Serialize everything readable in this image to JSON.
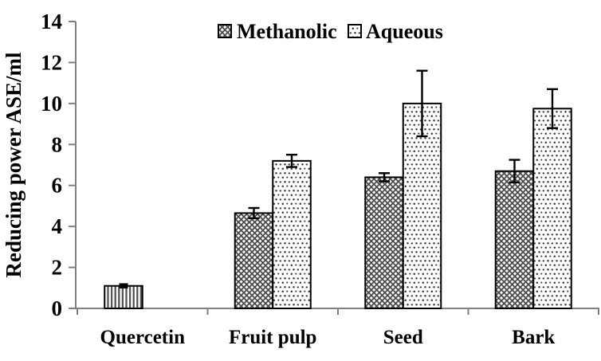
{
  "chart_data": {
    "type": "bar",
    "title": "",
    "ylabel": "Reducing power ASE/ml",
    "xlabel": "",
    "ylim": [
      0,
      14
    ],
    "yticks": [
      0,
      2,
      4,
      6,
      8,
      10,
      12,
      14
    ],
    "grid": false,
    "categories": [
      "Quercetin",
      "Fruit pulp",
      "Seed",
      "Bark"
    ],
    "legend": {
      "position": "top-center",
      "entries": [
        {
          "label": "Methanolic",
          "pattern": "diagonal-crosshatch"
        },
        {
          "label": "Aqueous",
          "pattern": "dots"
        }
      ]
    },
    "series": [
      {
        "name": "Methanolic",
        "pattern": "diagonal-crosshatch",
        "values": [
          null,
          4.65,
          6.4,
          6.7
        ],
        "errors": [
          null,
          0.25,
          0.2,
          0.55
        ]
      },
      {
        "name": "Aqueous",
        "pattern": "dots",
        "values": [
          null,
          7.2,
          10.0,
          9.75
        ],
        "errors": [
          null,
          0.3,
          1.6,
          0.95
        ]
      }
    ],
    "standard_bar": {
      "category": "Quercetin",
      "pattern": "vertical-stripes",
      "value": 1.1,
      "error": 0.08
    },
    "colors": {
      "background": "#ffffff",
      "bar_fill": "#ffffff",
      "bar_outline": "#000000",
      "pattern_ink": "#3c3c3c",
      "axis": "#808080",
      "text": "#000000"
    }
  }
}
